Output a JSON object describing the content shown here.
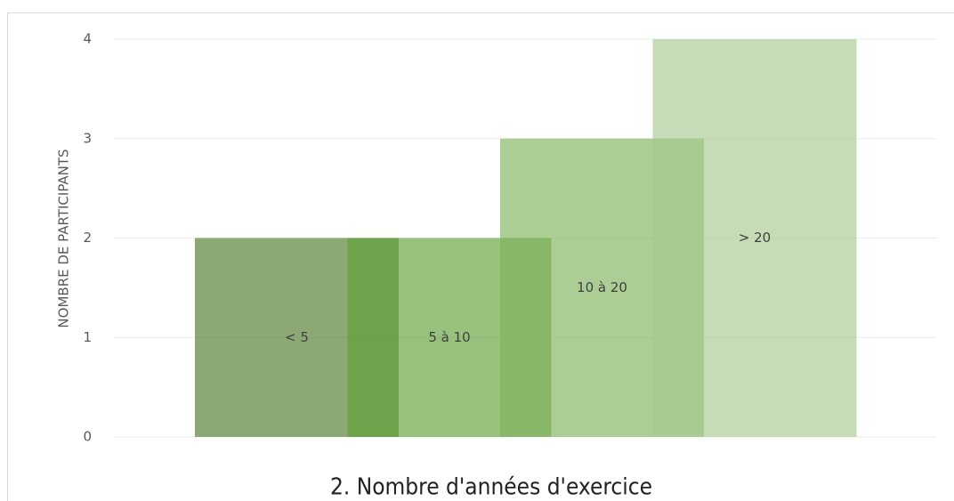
{
  "chart_data": {
    "type": "bar",
    "title": "2. Nombre d'années d'exercice",
    "ylabel": "NOMBRE DE PARTICIPANTS",
    "categories": [
      "< 5",
      "5 à 10",
      "10 à 20",
      "> 20"
    ],
    "values": [
      2,
      2,
      3,
      4
    ],
    "colors": [
      "#4e7a2a",
      "#5fa036",
      "#7fb35c",
      "#a6c98f"
    ],
    "ylim": [
      0,
      4
    ],
    "yticks": [
      0,
      1,
      2,
      3,
      4
    ],
    "grid": true
  }
}
